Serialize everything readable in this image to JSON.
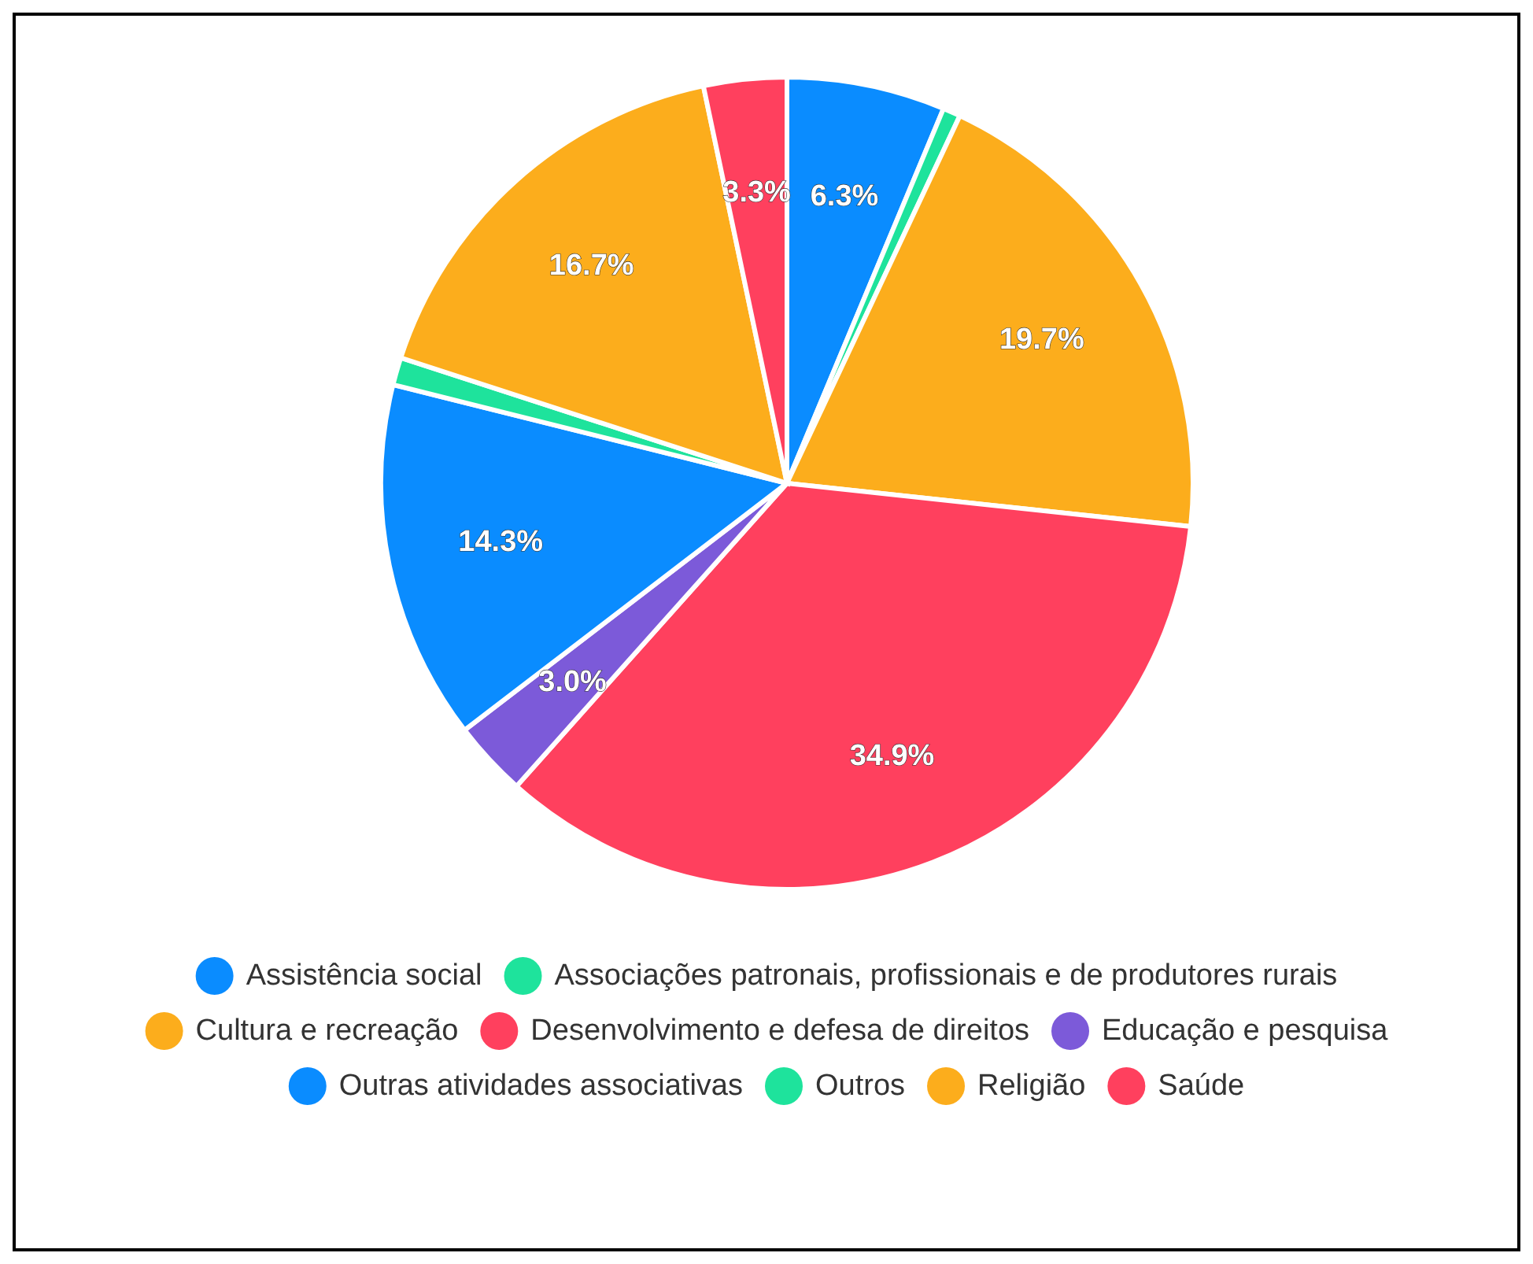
{
  "chart_data": {
    "type": "pie",
    "categories": [
      "Assistência social",
      "Associações patronais, profissionais e de produtores rurais",
      "Cultura e recreação",
      "Desenvolvimento e defesa de direitos",
      "Educação e pesquisa",
      "Outras atividades associativas",
      "Outros",
      "Religião",
      "Saúde"
    ],
    "values": [
      6.3,
      0.7,
      19.7,
      34.9,
      3.0,
      14.3,
      1.1,
      16.7,
      3.3
    ],
    "value_labels": [
      "6.3%",
      null,
      "19.7%",
      "34.9%",
      "3.0%",
      "14.3%",
      null,
      "16.7%",
      "3.3%"
    ],
    "colors": [
      "#0a8cff",
      "#1ee39c",
      "#fcad1c",
      "#ff405e",
      "#7c5ad9",
      "#0a8cff",
      "#1ee39c",
      "#fcad1c",
      "#ff405e"
    ],
    "legend": "bottom"
  }
}
